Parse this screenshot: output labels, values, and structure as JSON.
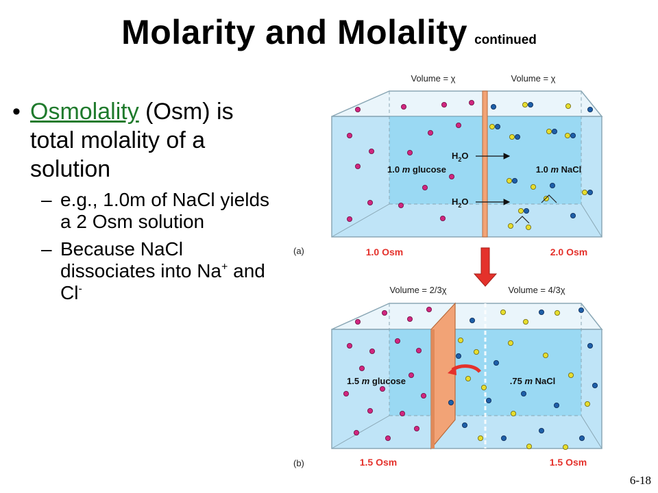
{
  "slide": {
    "title": "Molarity and Molality",
    "title_suffix": "continued",
    "slide_number": "6-18"
  },
  "bullets": {
    "main_bullet_symbol": "•",
    "term": "Osmolality",
    "main_text": " (Osm) is total molality of a solution",
    "sub_dash": "–",
    "sub1": "e.g., 1.0m of NaCl yields a 2 Osm solution",
    "sub2_text": "Because NaCl dissociates into Na",
    "sub2_sup1": "+",
    "sub2_mid": " and Cl",
    "sub2_sup2": "-"
  },
  "figure": {
    "panel_a": {
      "label": "(a)",
      "volume_left": "Volume = χ",
      "volume_right": "Volume = χ",
      "h2o_1": "H",
      "h2o_2": "O",
      "h2o_sub": "2",
      "left_conc_value": "1.0",
      "left_conc_unit": "m",
      "left_conc_solute": "glucose",
      "right_conc_value": "1.0",
      "right_conc_unit": "m",
      "right_conc_solute": "NaCl",
      "left_osm": "1.0 Osm",
      "right_osm": "2.0 Osm"
    },
    "panel_b": {
      "label": "(b)",
      "volume_left": "Volume = 2/3χ",
      "volume_right": "Volume = 4/3χ",
      "left_conc_value": "1.5",
      "left_conc_unit": "m",
      "left_conc_solute": "glucose",
      "right_conc_value": ".75",
      "right_conc_unit": "m",
      "right_conc_solute": "NaCl",
      "left_osm": "1.5 Osm",
      "right_osm": "1.5 Osm"
    },
    "colors": {
      "water": "#bfe4f7",
      "water_dark": "#7ccff0",
      "glucose": "#d0267f",
      "sodium": "#1e5fa8",
      "chloride": "#e6dd2e",
      "membrane": "#f2a376",
      "osm_label": "#e4312b",
      "arrow": "#e4312b"
    }
  }
}
